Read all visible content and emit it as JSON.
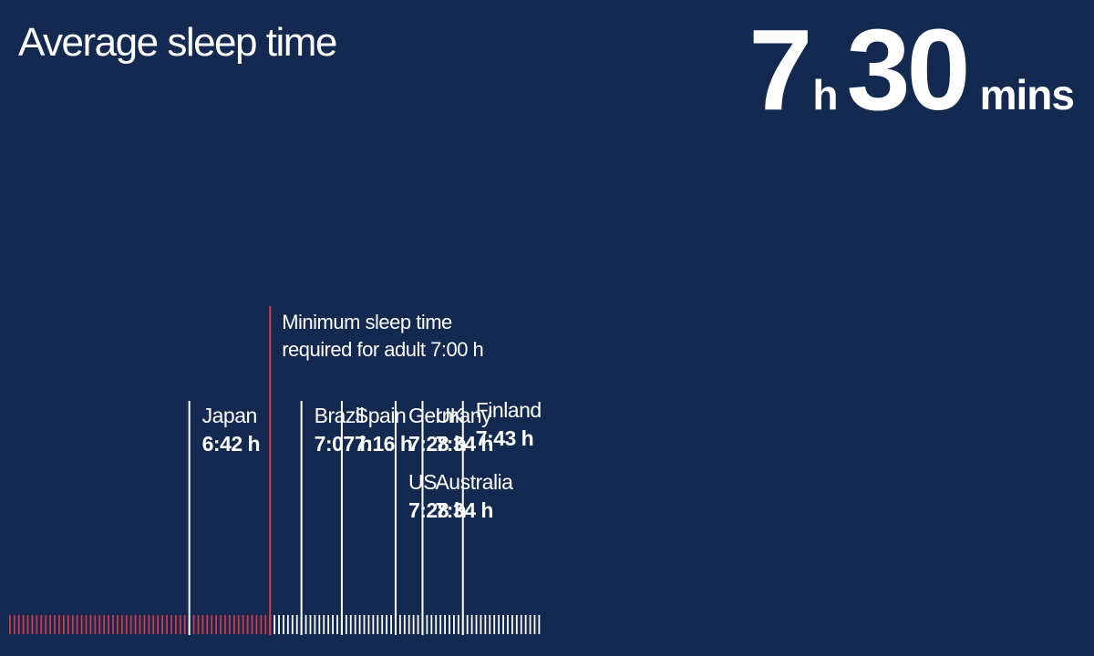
{
  "title": "Average sleep time",
  "headline": {
    "hours": "7",
    "hours_unit": "h",
    "minutes": "30",
    "minutes_unit": "mins"
  },
  "colors": {
    "background": "#13294f",
    "below_minimum": "#d23a4a",
    "above_minimum": "#ffffff"
  },
  "chart_data": {
    "type": "scatter",
    "title": "Average sleep time",
    "x_unit": "h",
    "xlim": [
      "6:00",
      "8:00"
    ],
    "threshold": {
      "value": "7:00",
      "label_line1": "Minimum  sleep time",
      "label_line2": "required for adult 7:00 h"
    },
    "countries": [
      {
        "name": "Japan",
        "value": "6:42 h",
        "minutes": 402
      },
      {
        "name": "Brazil",
        "value": "7:07 h",
        "minutes": 427
      },
      {
        "name": "Spain",
        "value": "7:16 h",
        "minutes": 436
      },
      {
        "name": "Germany",
        "value": "7:28 h",
        "minutes": 448
      },
      {
        "name": "US",
        "value": "7:28 h",
        "minutes": 448
      },
      {
        "name": "UK",
        "value": "7:34 h",
        "minutes": 454
      },
      {
        "name": "Australia",
        "value": "7:34 h",
        "minutes": 454
      },
      {
        "name": "Finland",
        "value": "7:43 h",
        "minutes": 463
      }
    ]
  }
}
